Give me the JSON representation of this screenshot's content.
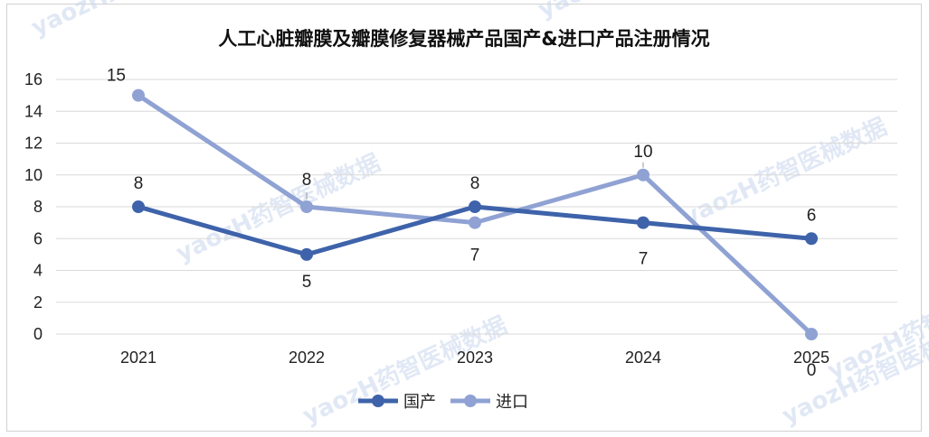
{
  "chart_data": {
    "type": "line",
    "title": "人工心脏瓣膜及瓣膜修复器械产品国产&进口产品注册情况",
    "categories": [
      "2021",
      "2022",
      "2023",
      "2024",
      "2025"
    ],
    "series": [
      {
        "name": "国产",
        "values": [
          8,
          5,
          8,
          7,
          6
        ],
        "color": "#3e63aa"
      },
      {
        "name": "进口",
        "values": [
          15,
          8,
          7,
          10,
          0
        ],
        "color": "#8fa2d3"
      }
    ],
    "ylim": [
      0,
      16
    ],
    "yticks": [
      0,
      2,
      4,
      6,
      8,
      10,
      12,
      14,
      16
    ],
    "grid": true,
    "legend": "bottom"
  },
  "watermark": {
    "text": "yaozH药智医械数据",
    "color": "#c9d6ee"
  }
}
